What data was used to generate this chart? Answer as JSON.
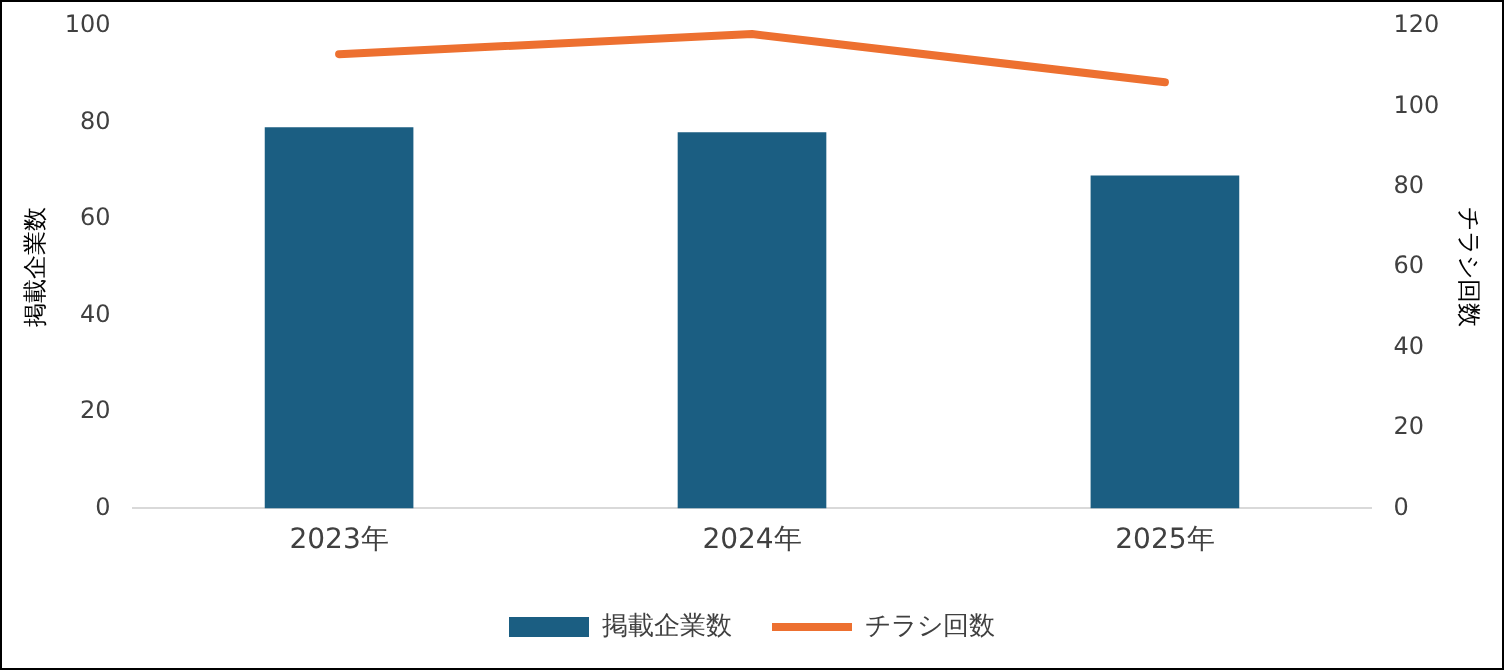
{
  "chart_data": {
    "type": "bar",
    "categories": [
      "2023年",
      "2024年",
      "2025年"
    ],
    "series": [
      {
        "name": "掲載企業数",
        "color": "#1b5e82",
        "values": [
          79,
          78,
          69
        ]
      },
      {
        "name": "チラシ回数",
        "type": "line",
        "axis": "y2",
        "color": "#ed7030",
        "values": [
          113,
          118,
          106
        ]
      }
    ],
    "ylabel": "掲載企業数",
    "y2label": "チラシ回数",
    "ylim": [
      0,
      100
    ],
    "yticks": [
      0,
      20,
      40,
      60,
      80,
      100
    ],
    "y2lim": [
      0,
      120
    ],
    "y2ticks": [
      0,
      20,
      40,
      60,
      80,
      100,
      120
    ],
    "grid": false,
    "legend": "bottom",
    "marker": "none"
  }
}
